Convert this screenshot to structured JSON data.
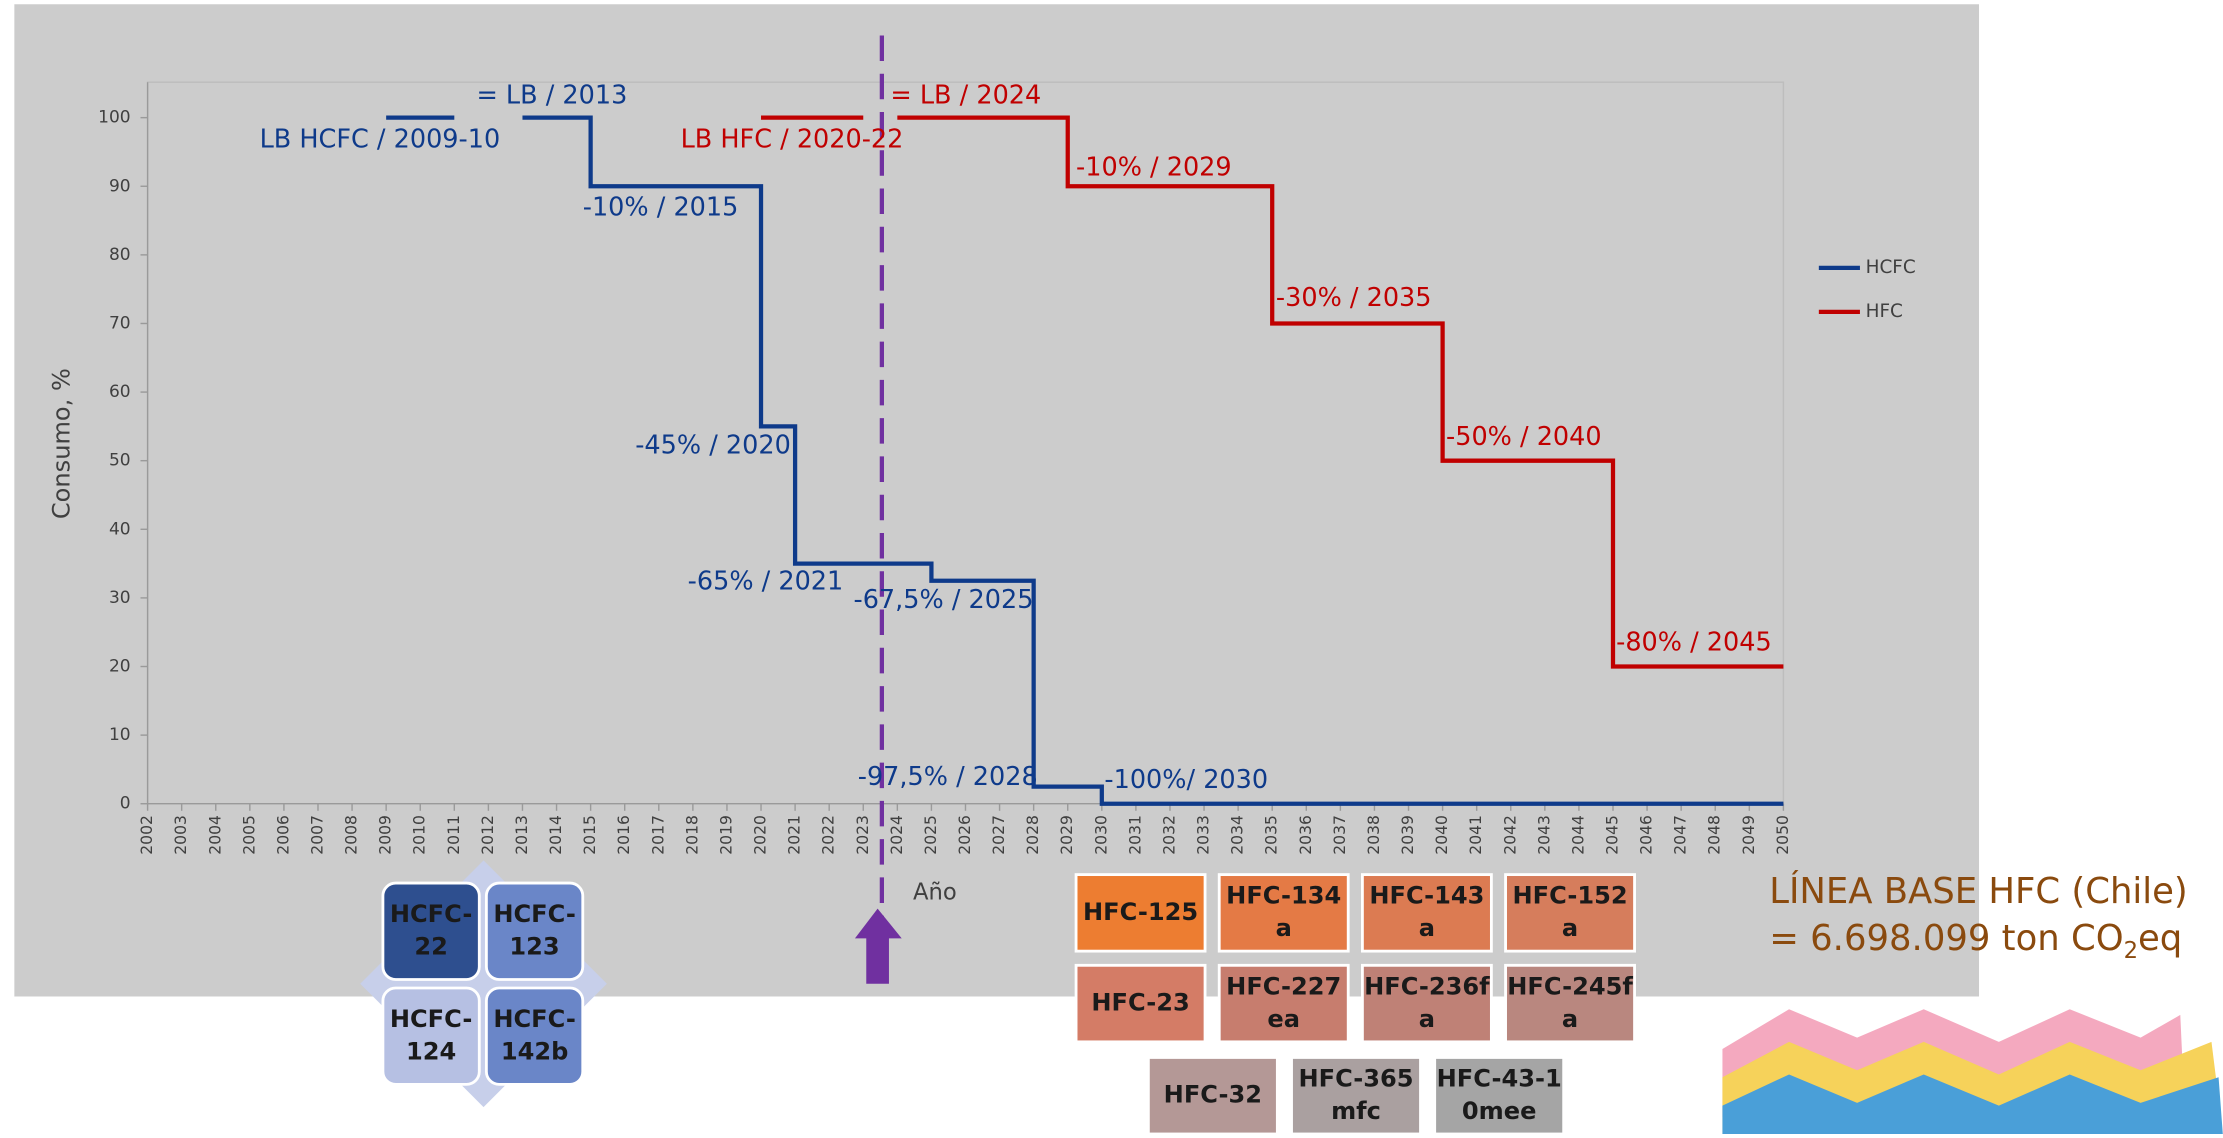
{
  "chart_data": {
    "type": "line",
    "y_label": "Consumo, %",
    "x_label": "Año",
    "xlim": [
      2002,
      2050
    ],
    "xticks": [
      2002,
      2003,
      2004,
      2005,
      2006,
      2007,
      2008,
      2009,
      2010,
      2011,
      2012,
      2013,
      2014,
      2015,
      2016,
      2017,
      2018,
      2019,
      2020,
      2021,
      2022,
      2023,
      2024,
      2025,
      2026,
      2027,
      2028,
      2029,
      2030,
      2031,
      2032,
      2033,
      2034,
      2035,
      2036,
      2037,
      2038,
      2039,
      2040,
      2041,
      2042,
      2043,
      2044,
      2045,
      2046,
      2047,
      2048,
      2049,
      2050
    ],
    "ylim": [
      0,
      100
    ],
    "yticks": [
      0,
      10,
      20,
      30,
      40,
      50,
      60,
      70,
      80,
      90,
      100
    ],
    "legend": "right",
    "series": [
      {
        "name": "HCFC",
        "color": "#0e3a8a",
        "x": [
          2009,
          2011,
          2012,
          2013,
          2015,
          2015,
          2020,
          2020,
          2021,
          2021,
          2025,
          2025,
          2028,
          2028,
          2030,
          2030,
          2050
        ],
        "values": [
          100,
          100,
          null,
          100,
          100,
          90,
          90,
          55,
          55,
          35,
          35,
          32.5,
          32.5,
          2.5,
          2.5,
          0,
          0
        ]
      },
      {
        "name": "HFC",
        "color": "#c00000",
        "x": [
          2020,
          2023,
          2024,
          2024,
          2029,
          2029,
          2035,
          2035,
          2040,
          2040,
          2045,
          2045,
          2050
        ],
        "values": [
          100,
          100,
          null,
          100,
          100,
          90,
          90,
          70,
          70,
          50,
          50,
          20,
          20
        ]
      }
    ],
    "annotations": {
      "HCFC": [
        "LB HCFC / 2009-10",
        "= LB / 2013",
        "-10% / 2015",
        "-45% / 2020",
        "-65% / 2021",
        "-67,5% / 2025",
        "-97,5% / 2028",
        "-100%/ 2030"
      ],
      "HFC": [
        "LB HFC / 2020-22",
        "= LB / 2024",
        "-10% / 2029",
        "-30% / 2035",
        "-50% / 2040",
        "-80% / 2045"
      ]
    }
  },
  "hcfc_boxes": [
    [
      "HCFC-",
      "22"
    ],
    [
      "HCFC-",
      "123"
    ],
    [
      "HCFC-",
      "124"
    ],
    [
      "HCFC-",
      "142b"
    ]
  ],
  "hfc_boxes": [
    [
      "HFC-125"
    ],
    [
      "HFC-134",
      "a"
    ],
    [
      "HFC-143",
      "a"
    ],
    [
      "HFC-152",
      "a"
    ],
    [
      "HFC-23"
    ],
    [
      "HFC-227",
      "ea"
    ],
    [
      "HFC-236f",
      "a"
    ],
    [
      "HFC-245f",
      "a"
    ],
    [
      "HFC-32"
    ],
    [
      "HFC-365",
      "mfc"
    ],
    [
      "HFC-43-1",
      "0mee"
    ]
  ],
  "baseline": {
    "line1": "LÍNEA BASE HFC (Chile)",
    "line2": "= 6.698.099 ton CO",
    "subscript": "2",
    "suffix": "eq"
  }
}
